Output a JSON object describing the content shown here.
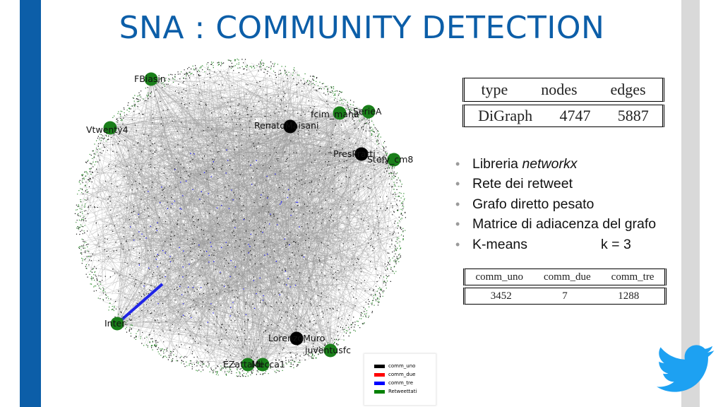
{
  "slide": {
    "title": "SNA : COMMUNITY DETECTION"
  },
  "graph_table": {
    "headers": [
      "type",
      "nodes",
      "edges"
    ],
    "values": [
      "DiGraph",
      "4747",
      "5887"
    ]
  },
  "bullets": [
    {
      "prefix": "Libreria ",
      "emph": "networkx",
      "suffix": ""
    },
    {
      "prefix": "Rete dei retweet",
      "emph": "",
      "suffix": ""
    },
    {
      "prefix": "Grafo diretto pesato",
      "emph": "",
      "suffix": ""
    },
    {
      "prefix": "Matrice di adiacenza del grafo",
      "emph": "",
      "suffix": ""
    },
    {
      "prefix": "K-means",
      "emph": "",
      "suffix": "",
      "extra": "k = 3"
    }
  ],
  "community_table": {
    "headers": [
      "comm_uno",
      "comm_due",
      "comm_tre"
    ],
    "values": [
      "3452",
      "7",
      "1288"
    ]
  },
  "legend": {
    "items": [
      {
        "label": "comm_uno",
        "color": "#000000"
      },
      {
        "label": "comm_due",
        "color": "#ff0000"
      },
      {
        "label": "comm_tre",
        "color": "#0000ff"
      },
      {
        "label": "Retweettati",
        "color": "#008000"
      }
    ]
  },
  "network": {
    "node_labels": [
      "FBiasin",
      "Vtwenty4",
      "fcim_mana",
      "SerieA",
      "RenatoMaisani",
      "PresPratti",
      "Stefy_cm8",
      "Inter",
      "LorenzoMuro",
      "juventusfc",
      "EZattaldi",
      "Mecca1"
    ],
    "colors": {
      "edge": "#9a9a9a",
      "hub_green": "#1a7f1a",
      "hub_black": "#000000",
      "blue_line": "#1f24e8"
    }
  },
  "brand": {
    "icon": "twitter-bird-icon",
    "color": "#1da1f2"
  }
}
